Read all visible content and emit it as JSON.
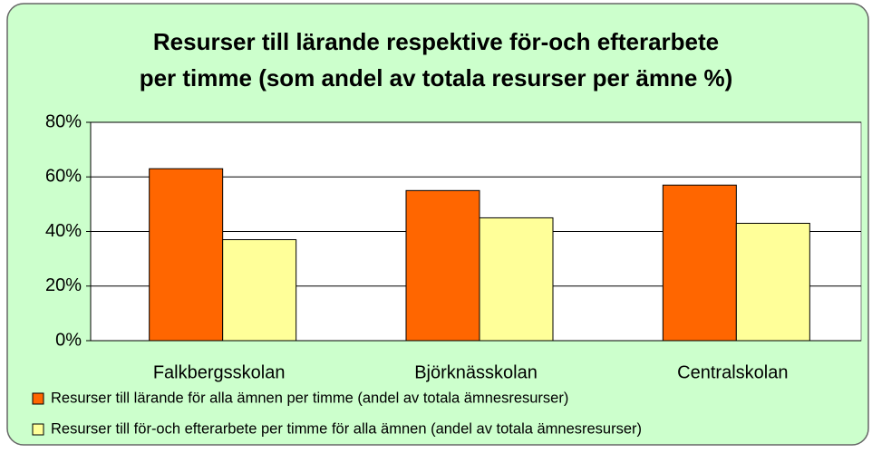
{
  "chart_data": {
    "type": "bar",
    "title": [
      "Resurser till lärande respektive för-och efterarbete",
      "per timme (som andel av totala resurser per ämne %)"
    ],
    "categories": [
      "Falkbergsskolan",
      "Björknässkolan",
      "Centralskolan"
    ],
    "series": [
      {
        "name": "Resurser till lärande för alla ämnen per timme (andel av totala ämnesresurser)",
        "color": "#ff6600",
        "values": [
          63,
          55,
          57
        ]
      },
      {
        "name": "Resurser till för-och efterarbete per timme för alla ämnen (andel av totala ämnesresurser)",
        "color": "#ffff99",
        "values": [
          37,
          45,
          43
        ]
      }
    ],
    "ylim": [
      0,
      80
    ],
    "yticks": [
      {
        "value": 0,
        "label": "0%"
      },
      {
        "value": 20,
        "label": "20%"
      },
      {
        "value": 40,
        "label": "40%"
      },
      {
        "value": 60,
        "label": "60%"
      },
      {
        "value": 80,
        "label": "80%"
      }
    ],
    "grid": true,
    "legend": "bottom"
  }
}
